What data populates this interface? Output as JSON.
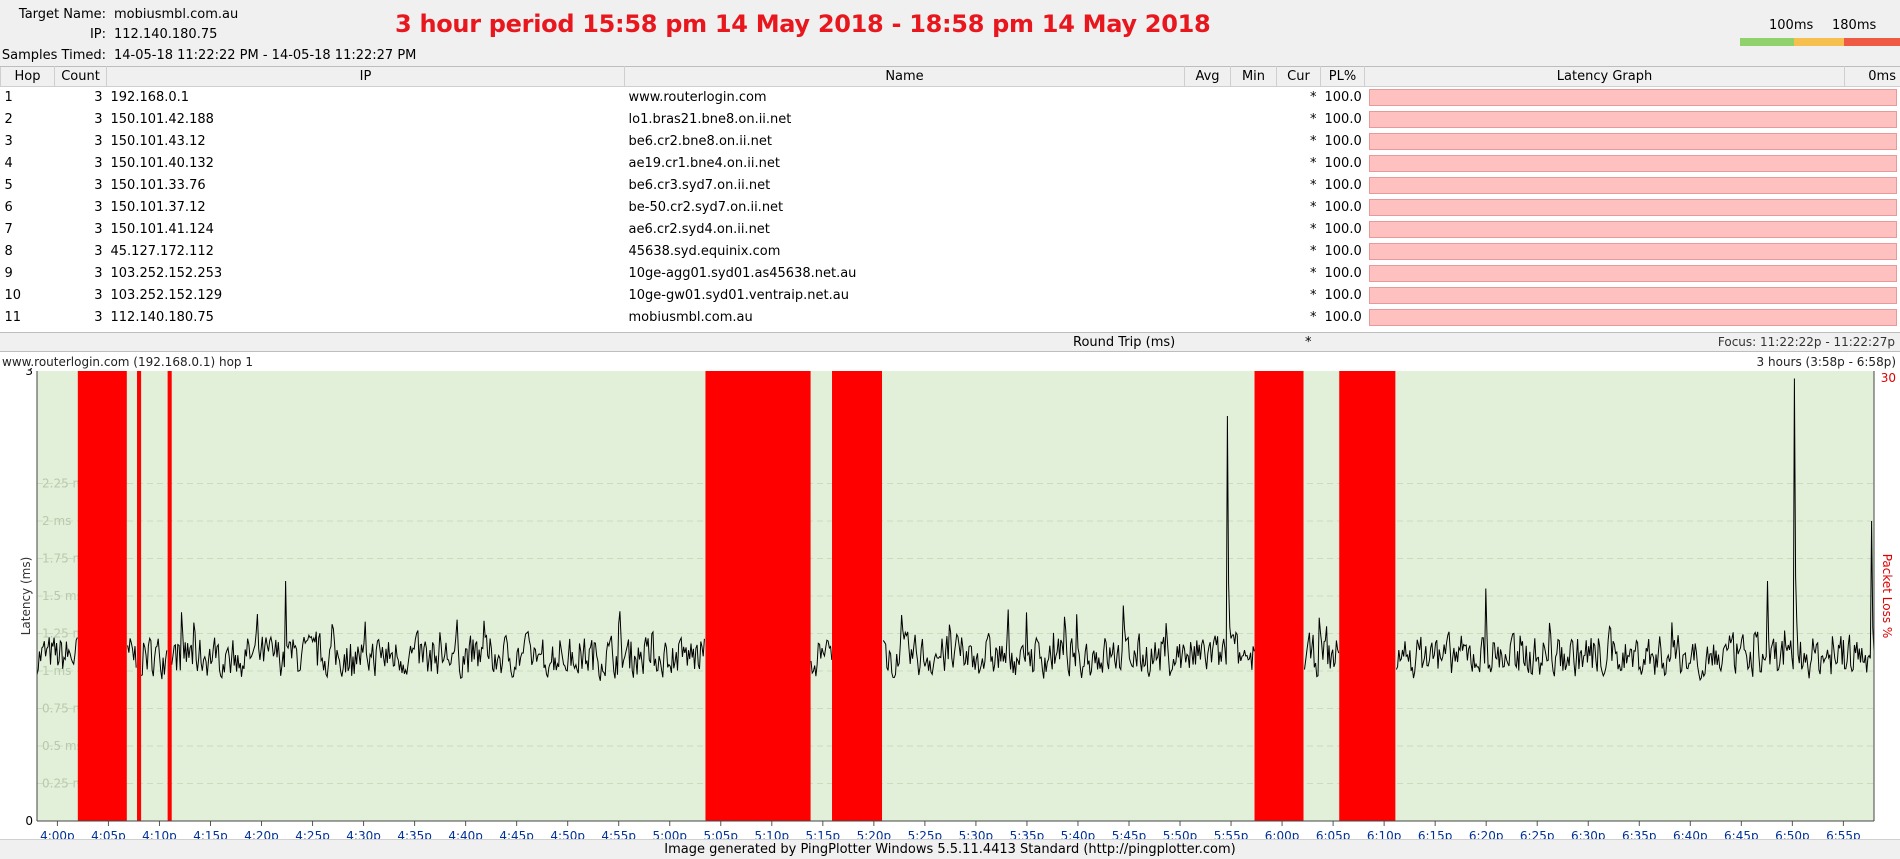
{
  "header": {
    "target_label": "Target Name:",
    "target_value": "mobiusmbl.com.au",
    "ip_label": "IP:",
    "ip_value": "112.140.180.75",
    "samples_label": "Samples Timed:",
    "samples_value": "14-05-18 11:22:22 PM - 14-05-18 11:22:27 PM",
    "big_title": "3 hour period 15:58 pm 14 May 2018 - 18:58 pm 14 May 2018",
    "scale_100": "100ms",
    "scale_180": "180ms",
    "scale_colors": [
      "#8fd16a",
      "#f5c04d",
      "#ee5a43"
    ]
  },
  "table": {
    "columns": [
      "Hop",
      "Count",
      "IP",
      "Name",
      "Avg",
      "Min",
      "Cur",
      "PL%",
      "Latency Graph",
      "0ms"
    ],
    "rows": [
      {
        "hop": "1",
        "count": "3",
        "ip": "192.168.0.1",
        "name": "www.routerlogin.com",
        "avg": "",
        "min": "",
        "cur": "*",
        "pl": "100.0"
      },
      {
        "hop": "2",
        "count": "3",
        "ip": "150.101.42.188",
        "name": "lo1.bras21.bne8.on.ii.net",
        "avg": "",
        "min": "",
        "cur": "*",
        "pl": "100.0"
      },
      {
        "hop": "3",
        "count": "3",
        "ip": "150.101.43.12",
        "name": "be6.cr2.bne8.on.ii.net",
        "avg": "",
        "min": "",
        "cur": "*",
        "pl": "100.0"
      },
      {
        "hop": "4",
        "count": "3",
        "ip": "150.101.40.132",
        "name": "ae19.cr1.bne4.on.ii.net",
        "avg": "",
        "min": "",
        "cur": "*",
        "pl": "100.0"
      },
      {
        "hop": "5",
        "count": "3",
        "ip": "150.101.33.76",
        "name": "be6.cr3.syd7.on.ii.net",
        "avg": "",
        "min": "",
        "cur": "*",
        "pl": "100.0"
      },
      {
        "hop": "6",
        "count": "3",
        "ip": "150.101.37.12",
        "name": "be-50.cr2.syd7.on.ii.net",
        "avg": "",
        "min": "",
        "cur": "*",
        "pl": "100.0"
      },
      {
        "hop": "7",
        "count": "3",
        "ip": "150.101.41.124",
        "name": "ae6.cr2.syd4.on.ii.net",
        "avg": "",
        "min": "",
        "cur": "*",
        "pl": "100.0"
      },
      {
        "hop": "8",
        "count": "3",
        "ip": "45.127.172.112",
        "name": "45638.syd.equinix.com",
        "avg": "",
        "min": "",
        "cur": "*",
        "pl": "100.0"
      },
      {
        "hop": "9",
        "count": "3",
        "ip": "103.252.152.253",
        "name": "10ge-agg01.syd01.as45638.net.au",
        "avg": "",
        "min": "",
        "cur": "*",
        "pl": "100.0"
      },
      {
        "hop": "10",
        "count": "3",
        "ip": "103.252.152.129",
        "name": "10ge-gw01.syd01.ventraip.net.au",
        "avg": "",
        "min": "",
        "cur": "*",
        "pl": "100.0"
      },
      {
        "hop": "11",
        "count": "3",
        "ip": "112.140.180.75",
        "name": "mobiusmbl.com.au",
        "avg": "",
        "min": "",
        "cur": "*",
        "pl": "100.0"
      }
    ],
    "round_trip_label": "Round Trip (ms)",
    "round_trip_cur": "*",
    "focus": "Focus: 11:22:22p - 11:22:27p"
  },
  "chart_header": {
    "title": "www.routerlogin.com (192.168.0.1) hop 1",
    "range": "3 hours (3:58p - 6:58p)"
  },
  "chart_data": {
    "type": "line",
    "ylabel": "Latency (ms)",
    "y2label": "Packet Loss %",
    "ylim": [
      0,
      3
    ],
    "y2_max_label": "30",
    "yticks": [
      0,
      0.25,
      0.5,
      0.75,
      1,
      1.25,
      1.5,
      1.75,
      2,
      2.25,
      3
    ],
    "ytick_labels": [
      "0",
      "0.25 ms",
      "0.5 ms",
      "0.75 ms",
      "1 ms",
      "1.25 ms",
      "1.5 ms",
      "1.75 ms",
      "2 ms",
      "2.25 ms",
      "3"
    ],
    "xlim_minutes": [
      958,
      1138
    ],
    "xtick_labels": [
      "4:00p",
      "4:05p",
      "4:10p",
      "4:15p",
      "4:20p",
      "4:25p",
      "4:30p",
      "4:35p",
      "4:40p",
      "4:45p",
      "4:50p",
      "4:55p",
      "5:00p",
      "5:05p",
      "5:10p",
      "5:15p",
      "5:20p",
      "5:25p",
      "5:30p",
      "5:35p",
      "5:40p",
      "5:45p",
      "5:50p",
      "5:55p",
      "6:00p",
      "6:05p",
      "6:10p",
      "6:15p",
      "6:20p",
      "6:25p",
      "6:30p",
      "6:35p",
      "6:40p",
      "6:45p",
      "6:50p",
      "6:55p"
    ],
    "xtick_minutes": [
      960,
      965,
      970,
      975,
      980,
      985,
      990,
      995,
      1000,
      1005,
      1010,
      1015,
      1020,
      1025,
      1030,
      1035,
      1040,
      1045,
      1050,
      1055,
      1060,
      1065,
      1070,
      1075,
      1080,
      1085,
      1090,
      1095,
      1100,
      1105,
      1110,
      1115,
      1120,
      1125,
      1130,
      1135
    ],
    "packet_loss_periods": [
      {
        "start": 962.0,
        "end": 966.8
      },
      {
        "start": 967.8,
        "end": 968.2
      },
      {
        "start": 970.8,
        "end": 971.2
      },
      {
        "start": 1023.5,
        "end": 1033.8
      },
      {
        "start": 1035.9,
        "end": 1040.8
      },
      {
        "start": 1077.3,
        "end": 1082.1
      },
      {
        "start": 1085.6,
        "end": 1091.1
      }
    ],
    "baseline_ms": 1.1,
    "spikes": [
      {
        "t": 982.4,
        "v": 1.6
      },
      {
        "t": 1074.6,
        "v": 2.7
      },
      {
        "t": 1073.2,
        "v": 1.15
      },
      {
        "t": 1130.2,
        "v": 2.95
      },
      {
        "t": 1100.0,
        "v": 1.55
      },
      {
        "t": 1127.5,
        "v": 1.6
      },
      {
        "t": 1137.8,
        "v": 2.0
      }
    ],
    "colors": {
      "background": "#e2efd9",
      "loss": "#ff0000",
      "line": "#000000",
      "grid": "#c9dcbe"
    }
  },
  "footer": "Image generated by PingPlotter Windows 5.5.11.4413 Standard (http://pingplotter.com)"
}
